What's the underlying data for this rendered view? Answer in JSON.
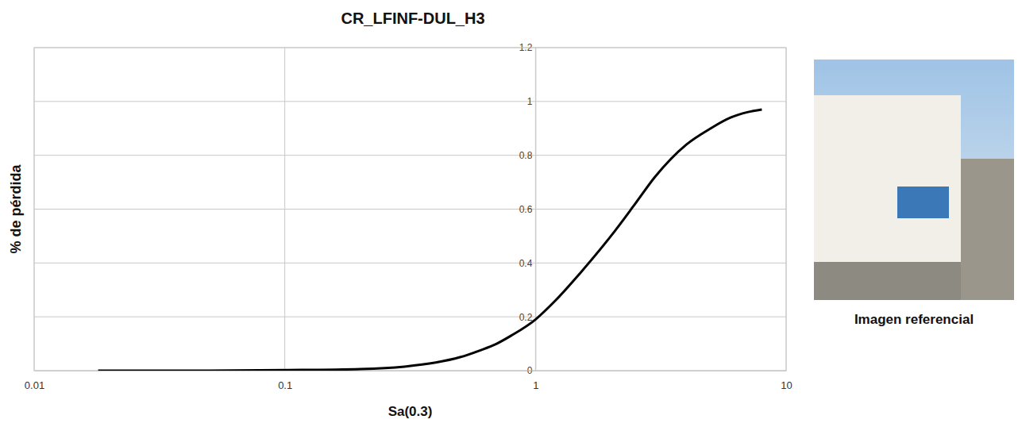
{
  "chart_data": {
    "type": "line",
    "title": "CR_LFINF-DUL_H3",
    "x_label": "Sa(0.3)",
    "y_label": "% de pérdida",
    "annotation": "Imagen referencial",
    "x": [
      0.018,
      0.05,
      0.1,
      0.2,
      0.3,
      0.4,
      0.5,
      0.6,
      0.7,
      0.8,
      1,
      1.2,
      1.5,
      2,
      2.5,
      3,
      4,
      5,
      6,
      7,
      8
    ],
    "values": [
      0,
      0,
      0.002,
      0.006,
      0.015,
      0.03,
      0.05,
      0.075,
      0.1,
      0.13,
      0.19,
      0.26,
      0.36,
      0.5,
      0.62,
      0.72,
      0.84,
      0.9,
      0.94,
      0.96,
      0.97
    ],
    "color": "#000000",
    "log": "x",
    "xlim": [
      0.01,
      10
    ],
    "xticks": [
      0.01,
      0.1,
      1,
      10
    ],
    "ylim": [
      0,
      1.2
    ],
    "yticks": [
      0,
      0.2,
      0.4,
      0.6,
      0.8,
      1,
      1.2
    ],
    "grid": true
  }
}
